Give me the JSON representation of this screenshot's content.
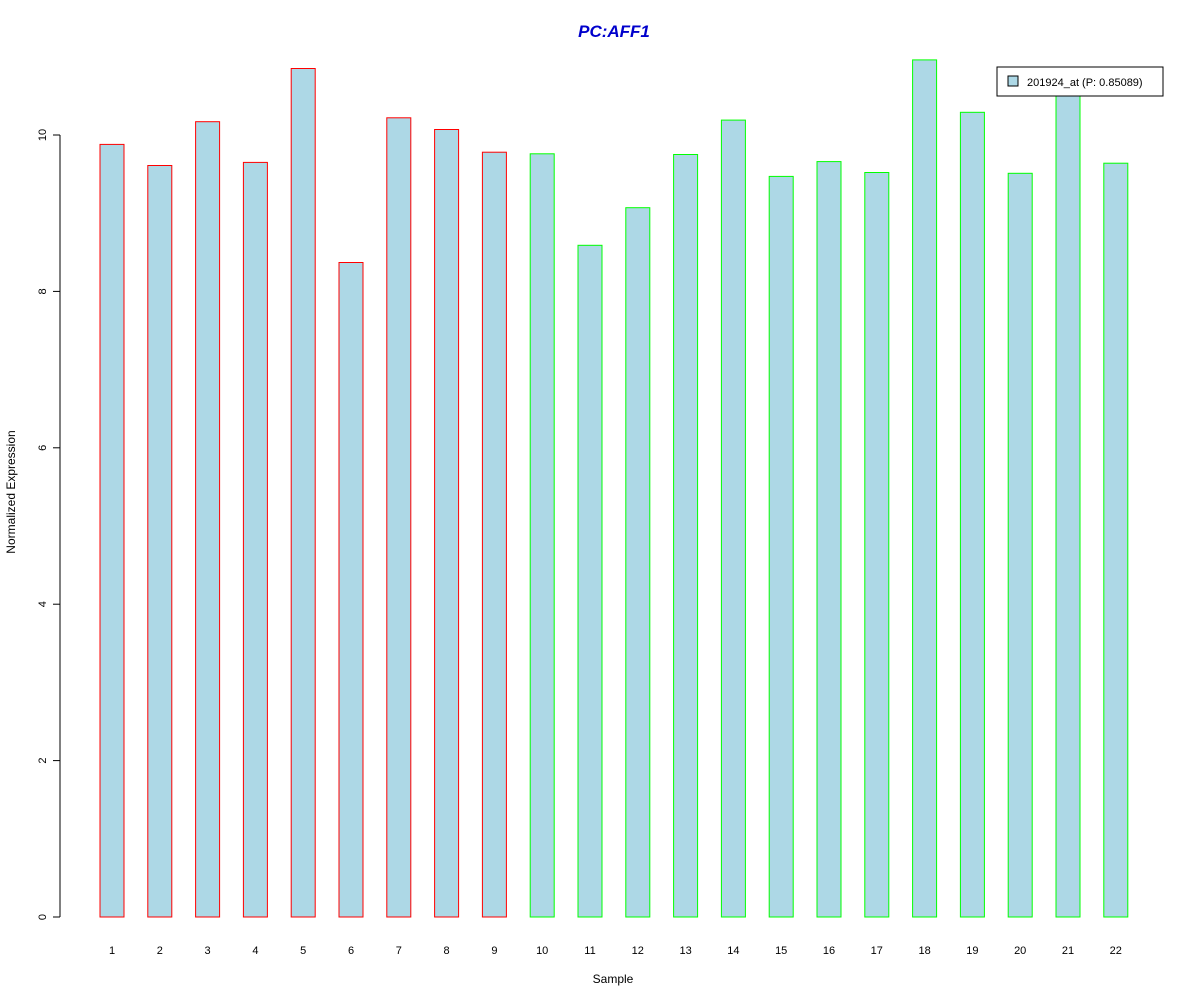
{
  "chart_data": {
    "type": "bar",
    "title": "PC:AFF1",
    "xlabel": "Sample",
    "ylabel": "Normalized Expression",
    "ylim": [
      0,
      11
    ],
    "y_ticks": [
      0,
      2,
      4,
      6,
      8,
      10
    ],
    "categories": [
      "1",
      "2",
      "3",
      "4",
      "5",
      "6",
      "7",
      "8",
      "9",
      "10",
      "11",
      "12",
      "13",
      "14",
      "15",
      "16",
      "17",
      "18",
      "19",
      "20",
      "21",
      "22"
    ],
    "series": [
      {
        "name": "201924_at (P: 0.85089)",
        "values": [
          9.88,
          9.61,
          10.17,
          9.65,
          10.85,
          8.37,
          10.22,
          10.07,
          9.78,
          9.76,
          8.59,
          9.07,
          9.75,
          10.19,
          9.47,
          9.66,
          9.52,
          10.96,
          10.29,
          9.51,
          10.52,
          9.64
        ]
      }
    ],
    "groups": [
      "1",
      "1",
      "1",
      "1",
      "1",
      "1",
      "1",
      "1",
      "1",
      "2",
      "2",
      "2",
      "2",
      "2",
      "2",
      "2",
      "2",
      "2",
      "2",
      "2",
      "2",
      "2"
    ],
    "legend_placement": "top-right",
    "grid": false,
    "colors": {
      "bar_fill": "#add8e6",
      "group_1_border": "#ff0000",
      "group_2_border": "#00ff00",
      "title": "#0000cc",
      "axis": "#000000"
    }
  }
}
